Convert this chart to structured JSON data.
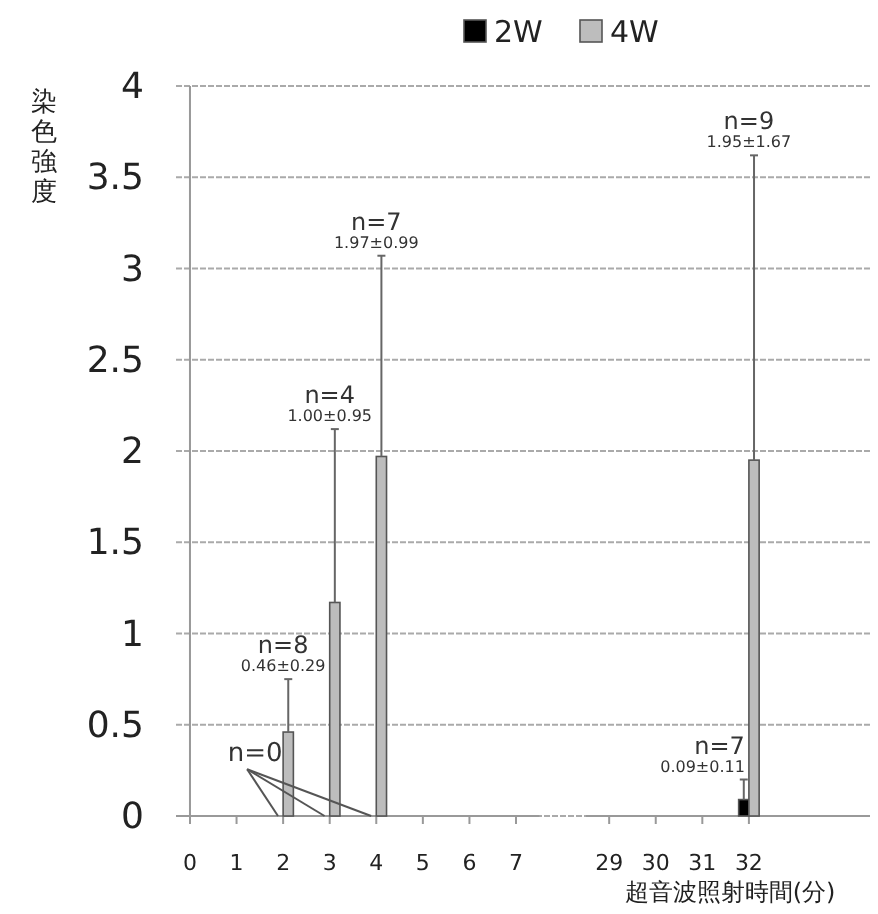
{
  "chart_data": {
    "type": "bar",
    "ylabel": "染色強度",
    "xlabel": "超音波照射時間(分)",
    "categories": [
      "0",
      "1",
      "2",
      "3",
      "4",
      "5",
      "6",
      "7",
      null,
      "29",
      "30",
      "31",
      "32"
    ],
    "series": [
      {
        "name": "2W",
        "color": "#000000",
        "values": [
          null,
          null,
          null,
          null,
          null,
          null,
          null,
          null,
          null,
          null,
          null,
          null,
          0.09
        ],
        "errors": [
          null,
          null,
          null,
          null,
          null,
          null,
          null,
          null,
          null,
          null,
          null,
          null,
          [
            0.09,
            0.2
          ]
        ]
      },
      {
        "name": "4W",
        "color": "#bdbdbd",
        "values": [
          null,
          null,
          0.46,
          1.17,
          1.97,
          null,
          null,
          null,
          null,
          null,
          null,
          null,
          1.95
        ],
        "errors": [
          null,
          null,
          [
            0.46,
            0.75
          ],
          [
            1.17,
            2.12
          ],
          [
            1.97,
            3.07
          ],
          null,
          null,
          null,
          null,
          null,
          null,
          null,
          [
            1.95,
            3.62
          ]
        ]
      }
    ],
    "ylim": [
      0,
      4
    ],
    "yticks": [
      0,
      0.5,
      1,
      1.5,
      2,
      2.5,
      3,
      3.5,
      4
    ],
    "grid": "y",
    "legend": "top",
    "annotations": [
      {
        "text": "n=0",
        "x": "2",
        "y": 0
      },
      {
        "text": "n=8",
        "x": "2",
        "y": 0.75
      },
      {
        "text": "0.46±0.29",
        "x": "2",
        "y": 0.75
      },
      {
        "text": "n=4",
        "x": "3",
        "y": 2.12
      },
      {
        "text": "1.00±0.95",
        "x": "3",
        "y": 2.12
      },
      {
        "text": "n=7",
        "x": "4",
        "y": 3.07
      },
      {
        "text": "1.97±0.99",
        "x": "4",
        "y": 3.07
      },
      {
        "text": "n=9",
        "x": "32",
        "y": 3.62
      },
      {
        "text": "1.95±1.67",
        "x": "32",
        "y": 3.62
      },
      {
        "text": "n=7",
        "x": "32",
        "y": 0.2
      },
      {
        "text": "0.09±0.11",
        "x": "32",
        "y": 0.2
      }
    ]
  }
}
